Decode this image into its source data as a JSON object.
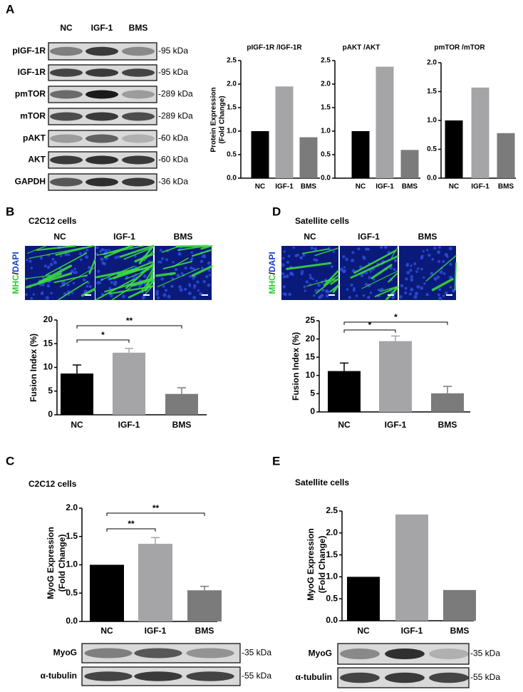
{
  "figure": {
    "panel_a": {
      "label": "A",
      "lanes": [
        "NC",
        "IGF-1",
        "BMS"
      ],
      "blots": [
        {
          "name": "pIGF-1R",
          "size": "-95 kDa"
        },
        {
          "name": "IGF-1R",
          "size": "-95 kDa"
        },
        {
          "name": "pmTOR",
          "size": "-289 kDa"
        },
        {
          "name": "mTOR",
          "size": "-289 kDa"
        },
        {
          "name": "pAKT",
          "size": "-60 kDa"
        },
        {
          "name": "AKT",
          "size": "-60 kDa"
        },
        {
          "name": "GAPDH",
          "size": "-36 kDa"
        }
      ]
    },
    "panel_b": {
      "label": "B",
      "title": "C2C12 cells",
      "image_columns": [
        "NC",
        "IGF-1",
        "BMS"
      ],
      "stain": [
        "MHC",
        "/",
        "DAPI"
      ]
    },
    "panel_c": {
      "label": "C",
      "title": "C2C12 cells",
      "blots": [
        {
          "name": "MyoG",
          "size": "-35 kDa"
        },
        {
          "name": "α-tubulin",
          "size": "-55 kDa"
        }
      ]
    },
    "panel_d": {
      "label": "D",
      "title": "Satellite cells",
      "image_columns": [
        "NC",
        "IGF-1",
        "BMS"
      ],
      "stain": [
        "MHC",
        "/",
        "DAPI"
      ]
    },
    "panel_e": {
      "label": "E",
      "title": "Satellite cells",
      "blots": [
        {
          "name": "MyoG",
          "size": "-35 kDa"
        },
        {
          "name": "α-tubulin",
          "size": "-55 kDa"
        }
      ]
    }
  },
  "chart_data": [
    {
      "type": "bar",
      "title": "pIGF-1R /IGF-1R",
      "ylabel": [
        "Protein Expression",
        "(Fold Change)"
      ],
      "categories": [
        "NC",
        "IGF-1",
        "BMS"
      ],
      "values": [
        1.0,
        1.95,
        0.87
      ],
      "colors": [
        "#000000",
        "#a5a5a8",
        "#7b7b7b"
      ],
      "ylim": [
        0,
        2.5
      ],
      "yticks": [
        {
          "value": 0,
          "label": "0.0"
        },
        {
          "value": 0.5,
          "label": "0.5"
        },
        {
          "value": 1,
          "label": "1.0"
        },
        {
          "value": 1.5,
          "label": "1.5"
        },
        {
          "value": 2,
          "label": "2.0"
        },
        {
          "value": 2.5,
          "label": "2.5"
        }
      ]
    },
    {
      "type": "bar",
      "title": "pAKT /AKT",
      "categories": [
        "NC",
        "IGF-1",
        "BMS"
      ],
      "values": [
        1.0,
        2.37,
        0.6
      ],
      "colors": [
        "#000000",
        "#a5a5a8",
        "#7b7b7b"
      ],
      "ylim": [
        0,
        2.5
      ],
      "yticks": [
        {
          "value": 0,
          "label": "0.0"
        },
        {
          "value": 0.5,
          "label": "0.5"
        },
        {
          "value": 1,
          "label": "1.0"
        },
        {
          "value": 1.5,
          "label": "1.5"
        },
        {
          "value": 2,
          "label": "2.0"
        },
        {
          "value": 2.5,
          "label": "2.5"
        }
      ]
    },
    {
      "type": "bar",
      "title": "pmTOR /mTOR",
      "categories": [
        "NC",
        "IGF-1",
        "BMS"
      ],
      "values": [
        1.0,
        1.57,
        0.78
      ],
      "colors": [
        "#000000",
        "#a5a5a8",
        "#7b7b7b"
      ],
      "ylim": [
        0,
        2
      ],
      "yticks": [
        {
          "value": 0,
          "label": "0.0"
        },
        {
          "value": 0.5,
          "label": "0.5"
        },
        {
          "value": 1,
          "label": "1.0"
        },
        {
          "value": 1.5,
          "label": "1.5"
        },
        {
          "value": 2,
          "label": "2.0"
        }
      ]
    },
    {
      "type": "bar",
      "ylabel": [
        "Fusion Index (%)"
      ],
      "categories": [
        "NC",
        "IGF-1",
        "BMS"
      ],
      "values": [
        8.7,
        13.1,
        4.4
      ],
      "errors": [
        1.8,
        0.9,
        1.3
      ],
      "colors": [
        "#000000",
        "#a5a5a8",
        "#7b7b7b"
      ],
      "ylim": [
        0,
        20
      ],
      "yticks": [
        0,
        5,
        10,
        15,
        20
      ],
      "significance": [
        {
          "groups": [
            "NC",
            "IGF-1"
          ],
          "label": "*"
        },
        {
          "groups": [
            "NC",
            "BMS"
          ],
          "label": "**"
        }
      ]
    },
    {
      "type": "bar",
      "ylabel": [
        "Fusion Index (%)"
      ],
      "categories": [
        "NC",
        "IGF-1",
        "BMS"
      ],
      "values": [
        11.2,
        19.4,
        5.1
      ],
      "errors": [
        2.2,
        1.4,
        1.9
      ],
      "colors": [
        "#000000",
        "#a5a5a8",
        "#7b7b7b"
      ],
      "ylim": [
        0,
        25
      ],
      "yticks": [
        0,
        5,
        10,
        15,
        20,
        25
      ],
      "significance": [
        {
          "groups": [
            "NC",
            "IGF-1"
          ],
          "label": "*"
        },
        {
          "groups": [
            "NC",
            "BMS"
          ],
          "label": "*"
        }
      ]
    },
    {
      "type": "bar",
      "ylabel": [
        "MyoG Expression",
        "(Fold Change)"
      ],
      "categories": [
        "NC",
        "IGF-1",
        "BMS"
      ],
      "values": [
        1.0,
        1.37,
        0.55
      ],
      "errors": [
        0,
        0.11,
        0.07
      ],
      "colors": [
        "#000000",
        "#a5a5a8",
        "#7b7b7b"
      ],
      "ylim": [
        0,
        2
      ],
      "yticks": [
        {
          "value": 0,
          "label": "0.0"
        },
        {
          "value": 0.5,
          "label": "0.5"
        },
        {
          "value": 1,
          "label": "1.0"
        },
        {
          "value": 1.5,
          "label": "1.5"
        },
        {
          "value": 2,
          "label": "2.0"
        }
      ],
      "significance": [
        {
          "groups": [
            "NC",
            "IGF-1"
          ],
          "label": "**"
        },
        {
          "groups": [
            "NC",
            "BMS"
          ],
          "label": "**"
        }
      ]
    },
    {
      "type": "bar",
      "ylabel": [
        "MyoG Expression",
        "(Fold Change)"
      ],
      "categories": [
        "NC",
        "IGF-1",
        "BMS"
      ],
      "values": [
        1.0,
        2.42,
        0.7
      ],
      "colors": [
        "#000000",
        "#a5a5a8",
        "#7b7b7b"
      ],
      "ylim": [
        0,
        2.5
      ],
      "yticks": [
        {
          "value": 0,
          "label": "0.0"
        },
        {
          "value": 0.5,
          "label": "0.5"
        },
        {
          "value": 1,
          "label": "1.0"
        },
        {
          "value": 1.5,
          "label": "1.5"
        },
        {
          "value": 2,
          "label": "2.0"
        },
        {
          "value": 2.5,
          "label": "2.5"
        }
      ]
    }
  ]
}
